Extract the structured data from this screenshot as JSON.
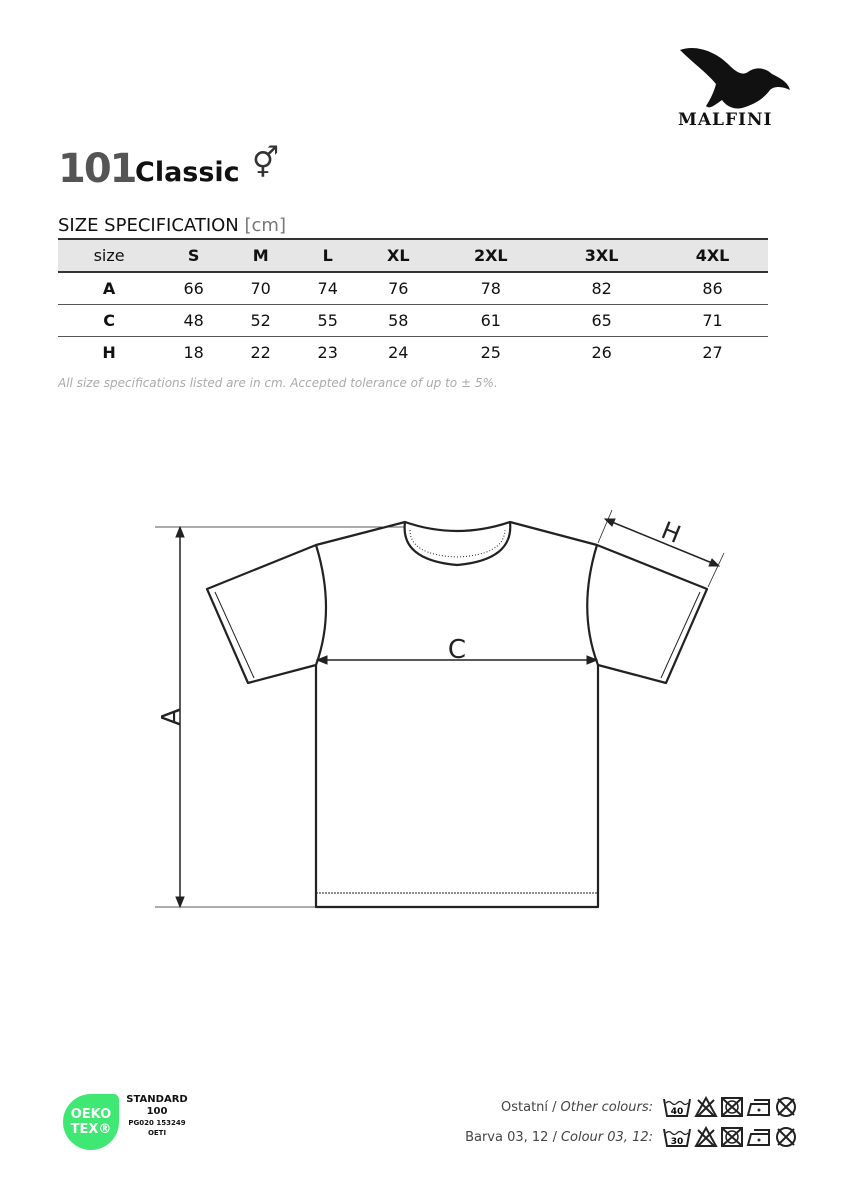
{
  "brand": {
    "name": "MALFINI"
  },
  "product": {
    "code": "101",
    "name": "Classic",
    "gender_symbol": "⚥"
  },
  "spec": {
    "title": "SIZE SPECIFICATION",
    "unit": "[cm]",
    "headers": [
      "size",
      "S",
      "M",
      "L",
      "XL",
      "2XL",
      "3XL",
      "4XL"
    ],
    "rows": [
      [
        "A",
        "66",
        "70",
        "74",
        "76",
        "78",
        "82",
        "86"
      ],
      [
        "C",
        "48",
        "52",
        "55",
        "58",
        "61",
        "65",
        "71"
      ],
      [
        "H",
        "18",
        "22",
        "23",
        "24",
        "25",
        "26",
        "27"
      ]
    ],
    "note": "All size specifications listed are in cm. Accepted tolerance of up to ± 5%."
  },
  "diagram": {
    "label_a": "A",
    "label_c": "C",
    "label_h": "H"
  },
  "certification": {
    "logo_line1": "OEKO",
    "logo_line2": "TEX®",
    "standard": "STANDARD",
    "number": "100",
    "code": "PG020 153249",
    "institute": "OETI",
    "color": "#3ee872"
  },
  "care": [
    {
      "label_cz": "Ostatní /",
      "label_en": "Other colours:",
      "wash_temp": "40"
    },
    {
      "label_cz": "Barva 03, 12 /",
      "label_en": "Colour 03, 12:",
      "wash_temp": "30"
    }
  ]
}
